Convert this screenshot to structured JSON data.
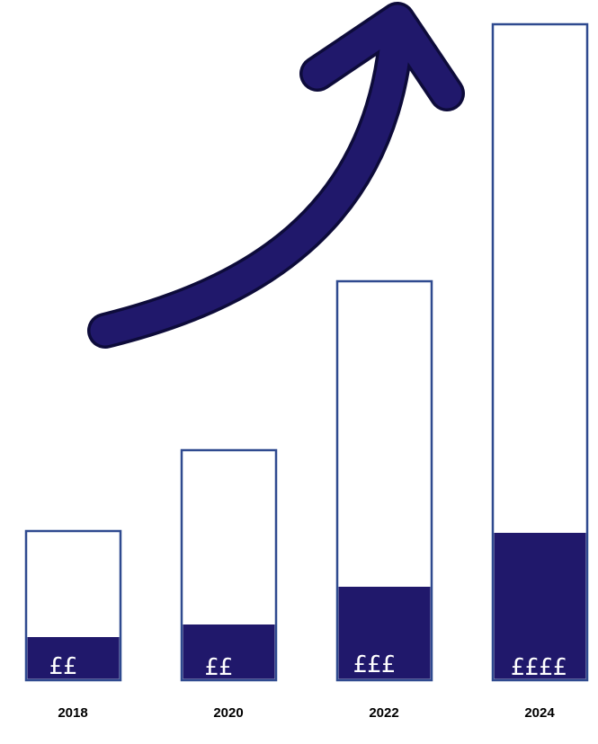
{
  "colors": {
    "accent": "#20186b",
    "outline": "#2f4a8f",
    "background": "#ffffff",
    "arrow_edge": "#0d0b3a"
  },
  "arrow": {
    "icon": "upward-trend-arrow-icon",
    "direction": "up-right"
  },
  "bars": [
    {
      "year": "2018",
      "amount": "££"
    },
    {
      "year": "2020",
      "amount": "££"
    },
    {
      "year": "2022",
      "amount": "£££"
    },
    {
      "year": "2024",
      "amount": "££££"
    }
  ]
}
